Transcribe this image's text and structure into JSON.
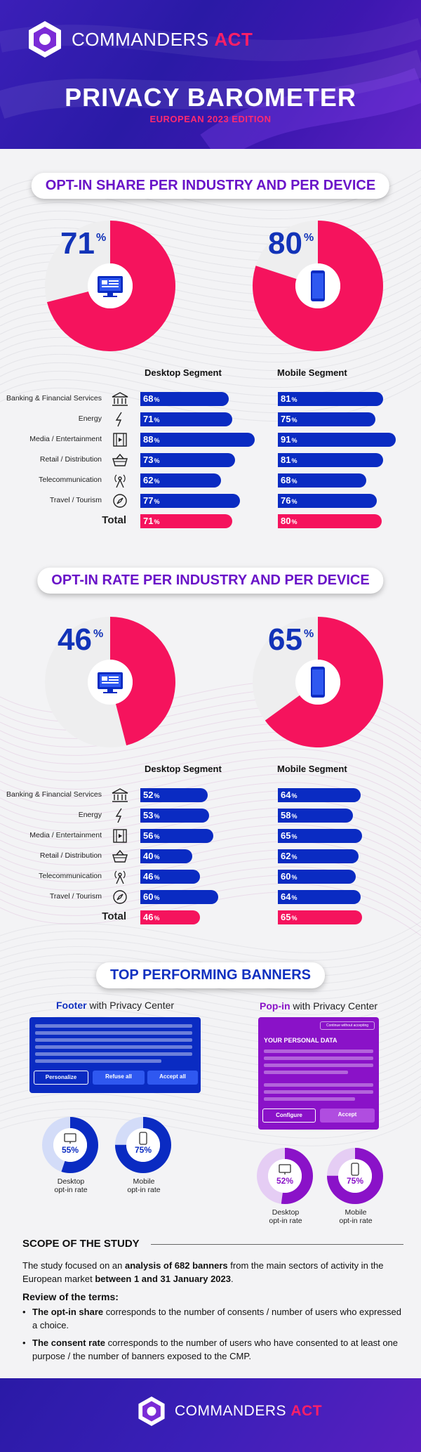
{
  "header": {
    "brand_main": "COMMANDERS",
    "brand_accent": "ACT",
    "title": "PRIVACY BAROMETER",
    "subtitle": "EUROPEAN 2023 EDITION"
  },
  "colors": {
    "primary_blue": "#0a2bc2",
    "accent_pink": "#f5135d",
    "purple": "#8a12c8",
    "header_bg": "#2a1aa6"
  },
  "section1": {
    "title": "OPT-IN SHARE PER INDUSTRY AND PER DEVICE",
    "desktop_value": "71",
    "mobile_value": "80",
    "pct": "%",
    "desktop_head": "Desktop Segment",
    "mobile_head": "Mobile Segment",
    "rows": [
      {
        "label": "Banking & Financial Services",
        "icon": "bank-icon",
        "desktop": "68",
        "mobile": "81"
      },
      {
        "label": "Energy",
        "icon": "lightning-icon",
        "desktop": "71",
        "mobile": "75"
      },
      {
        "label": "Media / Entertainment",
        "icon": "film-icon",
        "desktop": "88",
        "mobile": "91"
      },
      {
        "label": "Retail / Distribution",
        "icon": "basket-icon",
        "desktop": "73",
        "mobile": "81"
      },
      {
        "label": "Telecommunication",
        "icon": "antenna-icon",
        "desktop": "62",
        "mobile": "68"
      },
      {
        "label": "Travel / Tourism",
        "icon": "compass-icon",
        "desktop": "77",
        "mobile": "76"
      }
    ],
    "total_label": "Total",
    "total_desktop": "71",
    "total_mobile": "80"
  },
  "section2": {
    "title": "OPT-IN RATE PER INDUSTRY AND PER DEVICE",
    "desktop_value": "46",
    "mobile_value": "65",
    "pct": "%",
    "desktop_head": "Desktop Segment",
    "mobile_head": "Mobile Segment",
    "rows": [
      {
        "label": "Banking & Financial Services",
        "icon": "bank-icon",
        "desktop": "52",
        "mobile": "64"
      },
      {
        "label": "Energy",
        "icon": "lightning-icon",
        "desktop": "53",
        "mobile": "58"
      },
      {
        "label": "Media / Entertainment",
        "icon": "film-icon",
        "desktop": "56",
        "mobile": "65"
      },
      {
        "label": "Retail / Distribution",
        "icon": "basket-icon",
        "desktop": "40",
        "mobile": "62"
      },
      {
        "label": "Telecommunication",
        "icon": "antenna-icon",
        "desktop": "46",
        "mobile": "60"
      },
      {
        "label": "Travel / Tourism",
        "icon": "compass-icon",
        "desktop": "60",
        "mobile": "64"
      }
    ],
    "total_label": "Total",
    "total_desktop": "46",
    "total_mobile": "65"
  },
  "banners": {
    "title": "TOP PERFORMING BANNERS",
    "footer_title_bold": "Footer",
    "footer_title_rest": " with Privacy Center",
    "popin_title_bold": "Pop-in",
    "popin_title_rest": " with Privacy Center",
    "footer_btn_personalize": "Personalize",
    "footer_btn_refuse": "Refuse all",
    "footer_btn_accept": "Accept all",
    "popin_continue": "Continue without accepting",
    "popin_heading": "YOUR PERSONAL DATA",
    "popin_btn_configure": "Configure",
    "popin_btn_accept": "Accept",
    "footer_desktop_rate": "55%",
    "footer_mobile_rate": "75%",
    "popin_desktop_rate": "52%",
    "popin_mobile_rate": "75%",
    "desktop_caption_1": "Desktop",
    "mobile_caption_1": "Mobile",
    "caption_2": "opt-in rate"
  },
  "scope": {
    "title": "SCOPE OF THE STUDY",
    "p1_a": "The study focused on an ",
    "p1_b": "analysis of 682 banners",
    "p1_c": " from the main sectors of activity in the European market ",
    "p1_d": "between 1 and 31 January 2023",
    "p1_e": ".",
    "review_title": "Review of the terms:",
    "b1_bold": "The opt-in share",
    "b1_rest": " corresponds to the number of consents / number of users who expressed a choice.",
    "b2_bold": "The consent rate",
    "b2_rest": " corresponds to the number of users who have consented to at least one purpose / the number of banners exposed to the CMP."
  },
  "footer": {
    "brand_main": "COMMANDERS",
    "brand_accent": "ACT"
  }
}
